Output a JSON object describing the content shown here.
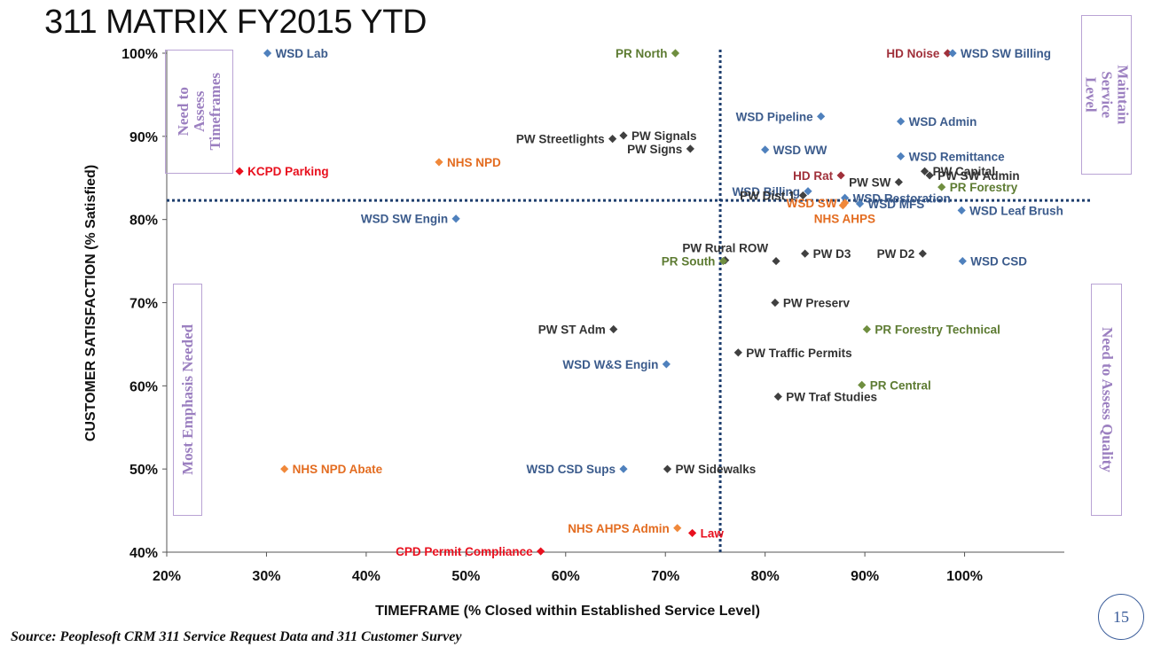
{
  "header": {
    "title": "311 MATRIX FY2015 YTD"
  },
  "footer": {
    "source": "Source: Peoplesoft CRM 311 Service Request Data and 311 Customer Survey",
    "page_number": "15"
  },
  "quadrants": {
    "top_left": "Need to\nAssess\nTimeframes",
    "top_right": "Maintain Service\nLevel",
    "bottom_left": "Most Emphasis Needed",
    "bottom_right": "Need to Assess Quality"
  },
  "colors": {
    "blue": "#4f81bd",
    "darkred": "#a0303a",
    "red": "#e8101e",
    "orange": "#f0883a",
    "green": "#6f8e3f",
    "gray": "#404040",
    "blue_text": "#3b5b8c",
    "green_text": "#5d7b32",
    "orange_text": "#e36c20"
  },
  "chart_data": {
    "type": "scatter",
    "xlabel": "TIMEFRAME (% Closed within Established Service Level)",
    "ylabel": "CUSTOMER SATISFACTION (% Satisfied)",
    "xlim": [
      20,
      110
    ],
    "ylim": [
      40,
      100
    ],
    "x_ticks": [
      "20%",
      "30%",
      "40%",
      "50%",
      "60%",
      "70%",
      "80%",
      "90%",
      "100%"
    ],
    "x_tick_values": [
      20,
      30,
      40,
      50,
      60,
      70,
      80,
      90,
      100
    ],
    "y_ticks": [
      "40%",
      "50%",
      "60%",
      "70%",
      "80%",
      "90%",
      "100%"
    ],
    "y_tick_values": [
      40,
      50,
      60,
      70,
      80,
      90,
      100
    ],
    "reference_lines": {
      "x": 75.5,
      "y": 82.3
    },
    "points": [
      {
        "label": "WSD Lab",
        "x": 30.1,
        "y": 100,
        "color": "blue",
        "side": "right"
      },
      {
        "label": "PR North",
        "x": 71.0,
        "y": 100,
        "color": "green",
        "side": "left"
      },
      {
        "label": "HD Noise",
        "x": 98.3,
        "y": 100,
        "color": "darkred",
        "side": "left"
      },
      {
        "label": "WSD SW Billing",
        "x": 98.8,
        "y": 100,
        "color": "blue",
        "side": "right"
      },
      {
        "label": "WSD Pipeline",
        "x": 85.6,
        "y": 92.4,
        "color": "blue",
        "side": "left"
      },
      {
        "label": "WSD Admin",
        "x": 93.6,
        "y": 91.8,
        "color": "blue",
        "side": "right"
      },
      {
        "label": "PW Streetlights",
        "x": 64.7,
        "y": 89.7,
        "color": "gray",
        "side": "left"
      },
      {
        "label": "PW Signals",
        "x": 65.8,
        "y": 90.1,
        "color": "gray",
        "side": "right"
      },
      {
        "label": "PW Signs",
        "x": 72.5,
        "y": 88.5,
        "color": "gray",
        "side": "left"
      },
      {
        "label": "WSD WW",
        "x": 80.0,
        "y": 88.4,
        "color": "blue",
        "side": "right"
      },
      {
        "label": "WSD Remittance",
        "x": 93.6,
        "y": 87.6,
        "color": "blue",
        "side": "right"
      },
      {
        "label": "NHS NPD",
        "x": 47.3,
        "y": 86.9,
        "color": "orange",
        "side": "right"
      },
      {
        "label": "KCPD Parking",
        "x": 27.3,
        "y": 85.8,
        "color": "red",
        "side": "right"
      },
      {
        "label": "PW Capital",
        "x": 96.0,
        "y": 85.8,
        "color": "gray",
        "side": "right"
      },
      {
        "label": "HD Rat",
        "x": 87.6,
        "y": 85.3,
        "color": "darkred",
        "side": "left"
      },
      {
        "label": "PW SW Admin",
        "x": 96.5,
        "y": 85.3,
        "color": "gray",
        "side": "right"
      },
      {
        "label": "PW SW",
        "x": 93.4,
        "y": 84.5,
        "color": "gray",
        "side": "left"
      },
      {
        "label": "PR Forestry",
        "x": 97.7,
        "y": 83.9,
        "color": "green",
        "side": "right"
      },
      {
        "label": "WSD Billing",
        "x": 84.3,
        "y": 83.4,
        "color": "blue",
        "side": "left"
      },
      {
        "label": "PW Dist 1",
        "x": 83.8,
        "y": 82.9,
        "color": "gray",
        "side": "left"
      },
      {
        "label": "WSD Restoration",
        "x": 88.0,
        "y": 82.6,
        "color": "blue",
        "side": "right"
      },
      {
        "label": "WSD SW",
        "x": 88.0,
        "y": 82.0,
        "color": "orange",
        "side": "left"
      },
      {
        "label": "WSD MFS",
        "x": 89.5,
        "y": 81.9,
        "color": "blue",
        "side": "right"
      },
      {
        "label": "NHS AHPS",
        "x": 87.8,
        "y": 81.7,
        "color": "orange",
        "side": "below"
      },
      {
        "label": "WSD Leaf Brush",
        "x": 99.7,
        "y": 81.1,
        "color": "blue",
        "side": "right"
      },
      {
        "label": "WSD SW Engin",
        "x": 49.0,
        "y": 80.1,
        "color": "blue",
        "side": "left"
      },
      {
        "label": "PW Rural ROW",
        "x": 76.0,
        "y": 75.1,
        "color": "gray",
        "side": "above"
      },
      {
        "label": "PR South",
        "x": 75.8,
        "y": 75.0,
        "color": "green",
        "side": "left"
      },
      {
        "label": "",
        "x": 81.1,
        "y": 75.0,
        "color": "gray",
        "side": "none"
      },
      {
        "label": "PW D3",
        "x": 84.0,
        "y": 75.9,
        "color": "gray",
        "side": "right"
      },
      {
        "label": "PW D2",
        "x": 95.8,
        "y": 75.9,
        "color": "gray",
        "side": "left"
      },
      {
        "label": "WSD CSD",
        "x": 99.8,
        "y": 75.0,
        "color": "blue",
        "side": "right"
      },
      {
        "label": "PW Preserv",
        "x": 81.0,
        "y": 70.0,
        "color": "gray",
        "side": "right"
      },
      {
        "label": "PW ST Adm",
        "x": 64.8,
        "y": 66.8,
        "color": "gray",
        "side": "left"
      },
      {
        "label": "PR Forestry Technical",
        "x": 90.2,
        "y": 66.8,
        "color": "green",
        "side": "right"
      },
      {
        "label": "PW Traffic Permits",
        "x": 77.3,
        "y": 64.0,
        "color": "gray",
        "side": "right"
      },
      {
        "label": "WSD W&S Engin",
        "x": 70.1,
        "y": 62.6,
        "color": "blue",
        "side": "left"
      },
      {
        "label": "PR Central",
        "x": 89.7,
        "y": 60.1,
        "color": "green",
        "side": "right"
      },
      {
        "label": "PW Traf Studies",
        "x": 81.3,
        "y": 58.7,
        "color": "gray",
        "side": "right"
      },
      {
        "label": "NHS NPD Abate",
        "x": 31.8,
        "y": 50.0,
        "color": "orange",
        "side": "right"
      },
      {
        "label": "WSD CSD Sups",
        "x": 65.8,
        "y": 50.0,
        "color": "blue",
        "side": "left"
      },
      {
        "label": "PW Sidewalks",
        "x": 70.2,
        "y": 50.0,
        "color": "gray",
        "side": "right"
      },
      {
        "label": "NHS AHPS Admin",
        "x": 71.2,
        "y": 42.9,
        "color": "orange",
        "side": "left"
      },
      {
        "label": "Law",
        "x": 72.7,
        "y": 42.3,
        "color": "red",
        "side": "right"
      },
      {
        "label": "CPD Permit Compliance",
        "x": 57.5,
        "y": 40.1,
        "color": "red",
        "side": "left"
      }
    ]
  }
}
